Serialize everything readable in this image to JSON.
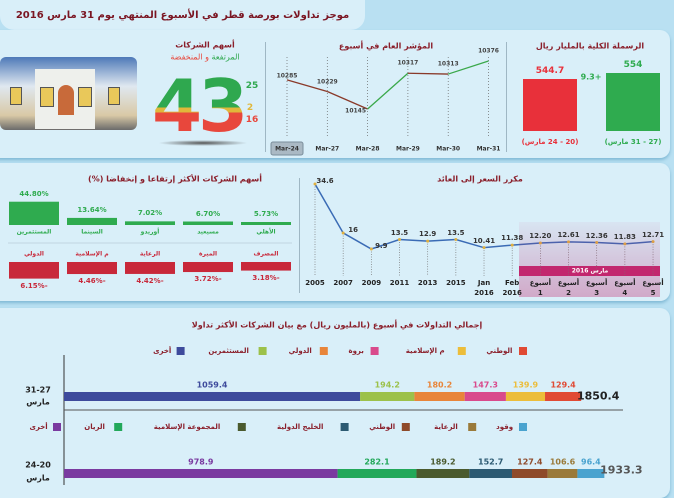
{
  "title": "موجز تداولات بورصة قطر في الأسبوع المنتهي يوم 31 مارس 2016",
  "photo": {
    "sign_text": "المجموعة",
    "alt": "building-photo"
  },
  "companies": {
    "title": "أسهم الشركات",
    "subtitle_up": "المرتفعة",
    "subtitle_and": "و",
    "subtitle_down": "المنخفضة",
    "total": "43",
    "up": "25",
    "unchanged": "2",
    "down": "16",
    "colors": {
      "up": "#2fa84f",
      "unchanged": "#e0b73a",
      "down": "#e8473c"
    }
  },
  "chart_data": [
    {
      "type": "line",
      "title": "المؤشر العام في أسبوع",
      "categories": [
        "24-Mar",
        "27-Mar",
        "28-Mar",
        "29-Mar",
        "30-Mar",
        "31-Mar"
      ],
      "values": [
        10285,
        10229,
        10145,
        10317,
        10313,
        10376
      ],
      "highlighted_category": "24-Mar",
      "colors": {
        "down": "#8a3a2a",
        "up": "#3aa84a"
      }
    },
    {
      "type": "bar",
      "title": "الرسملة الكلية بالمليار ريال",
      "categories": [
        "(27 - 31 مارس)",
        "(20 - 24 مارس)"
      ],
      "values": [
        554,
        544.7
      ],
      "change_label": "+9.3",
      "colors": [
        "#2fab4f",
        "#e8303a"
      ]
    },
    {
      "type": "line",
      "title": "مكرر السعر إلى العائد",
      "categories": [
        [
          "2005"
        ],
        [
          "2007"
        ],
        [
          "2009"
        ],
        [
          "2011"
        ],
        [
          "2013"
        ],
        [
          "2015"
        ],
        [
          "Jan",
          "2016"
        ],
        [
          "Feb",
          "2016"
        ],
        [
          "أسبوع",
          "1"
        ],
        [
          "أسبوع",
          "2"
        ],
        [
          "أسبوع",
          "3"
        ],
        [
          "أسبوع",
          "4"
        ],
        [
          "أسبوع",
          "5"
        ]
      ],
      "values": [
        34.6,
        16,
        9.9,
        13.5,
        12.9,
        13.5,
        10.41,
        11.38,
        12.2,
        12.61,
        12.36,
        11.83,
        12.71
      ],
      "value_labels": [
        "34.6",
        "16",
        "9.9",
        "13.5",
        "12.9",
        "13.5",
        "10.41",
        "11.38",
        "12.20",
        "12.61",
        "12.36",
        "11.83",
        "12.71"
      ],
      "highlight_label": "مارس 2016",
      "colors": {
        "line": "#3a6bb5",
        "highlight": "#c2276e"
      }
    },
    {
      "type": "bar",
      "title": "أسهم الشركات الأكثر إرتفاعا و إنخفاضا (%)",
      "gainers": [
        {
          "name": "الأهلي",
          "value": 5.73,
          "label": "5.73%"
        },
        {
          "name": "مسيعيد",
          "value": 6.7,
          "label": "6.70%"
        },
        {
          "name": "أوريدو",
          "value": 7.02,
          "label": "7.02%"
        },
        {
          "name": "السينما",
          "value": 13.64,
          "label": "13.64%"
        },
        {
          "name": "المستثمرين",
          "value": 44.8,
          "label": "44.80%"
        }
      ],
      "losers": [
        {
          "name": "المصرف",
          "value": -3.18,
          "label": "-3.18%"
        },
        {
          "name": "الميرة",
          "value": -3.72,
          "label": "-3.72%"
        },
        {
          "name": "الرعاية",
          "value": -4.42,
          "label": "-4.42%"
        },
        {
          "name": "م الإسلامية",
          "value": -4.46,
          "label": "-4.46%"
        },
        {
          "name": "الدولي",
          "value": -6.15,
          "label": "-6.15%"
        }
      ],
      "colors": {
        "gain": "#2fab4f",
        "loss": "#c8283a"
      }
    },
    {
      "type": "bar",
      "orientation": "horizontal-stacked",
      "title": "إجمالي التداولات في أسبوع (بالمليون ريال) مع  بيان الشركات الأكثر تداولا",
      "rows": [
        {
          "label": [
            "31-27",
            "مارس"
          ],
          "total": "1850.4",
          "segments": [
            {
              "name": "الوطني",
              "value": 129.4,
              "color": "#e04a34"
            },
            {
              "name": "م الإسلامية",
              "value": 139.9,
              "color": "#ecbd3a"
            },
            {
              "name": "بروة",
              "value": 147.3,
              "color": "#d94a8c"
            },
            {
              "name": "الدولي",
              "value": 180.2,
              "color": "#e8853a"
            },
            {
              "name": "المستثمرين",
              "value": 194.2,
              "color": "#9cc14a"
            },
            {
              "name": "أخرى",
              "value": 1059.4,
              "color": "#3d4a9c"
            }
          ]
        },
        {
          "label": [
            "24-20",
            "مارس"
          ],
          "total": "1933.3",
          "segments": [
            {
              "name": "وقود",
              "value": 96.4,
              "color": "#4aa3cf"
            },
            {
              "name": "الرعاية",
              "value": 106.6,
              "color": "#9a7a3a"
            },
            {
              "name": "الوطني",
              "value": 127.4,
              "color": "#8e4a2a"
            },
            {
              "name": "الخليج الدولية",
              "value": 152.7,
              "color": "#2c5a72"
            },
            {
              "name": "المجموعة الإسلامية",
              "value": 189.2,
              "color": "#4a5a2e"
            },
            {
              "name": "الريان",
              "value": 282.1,
              "color": "#22a85a"
            },
            {
              "name": "أخرى",
              "value": 978.9,
              "color": "#7a3aa0"
            }
          ]
        }
      ]
    }
  ]
}
